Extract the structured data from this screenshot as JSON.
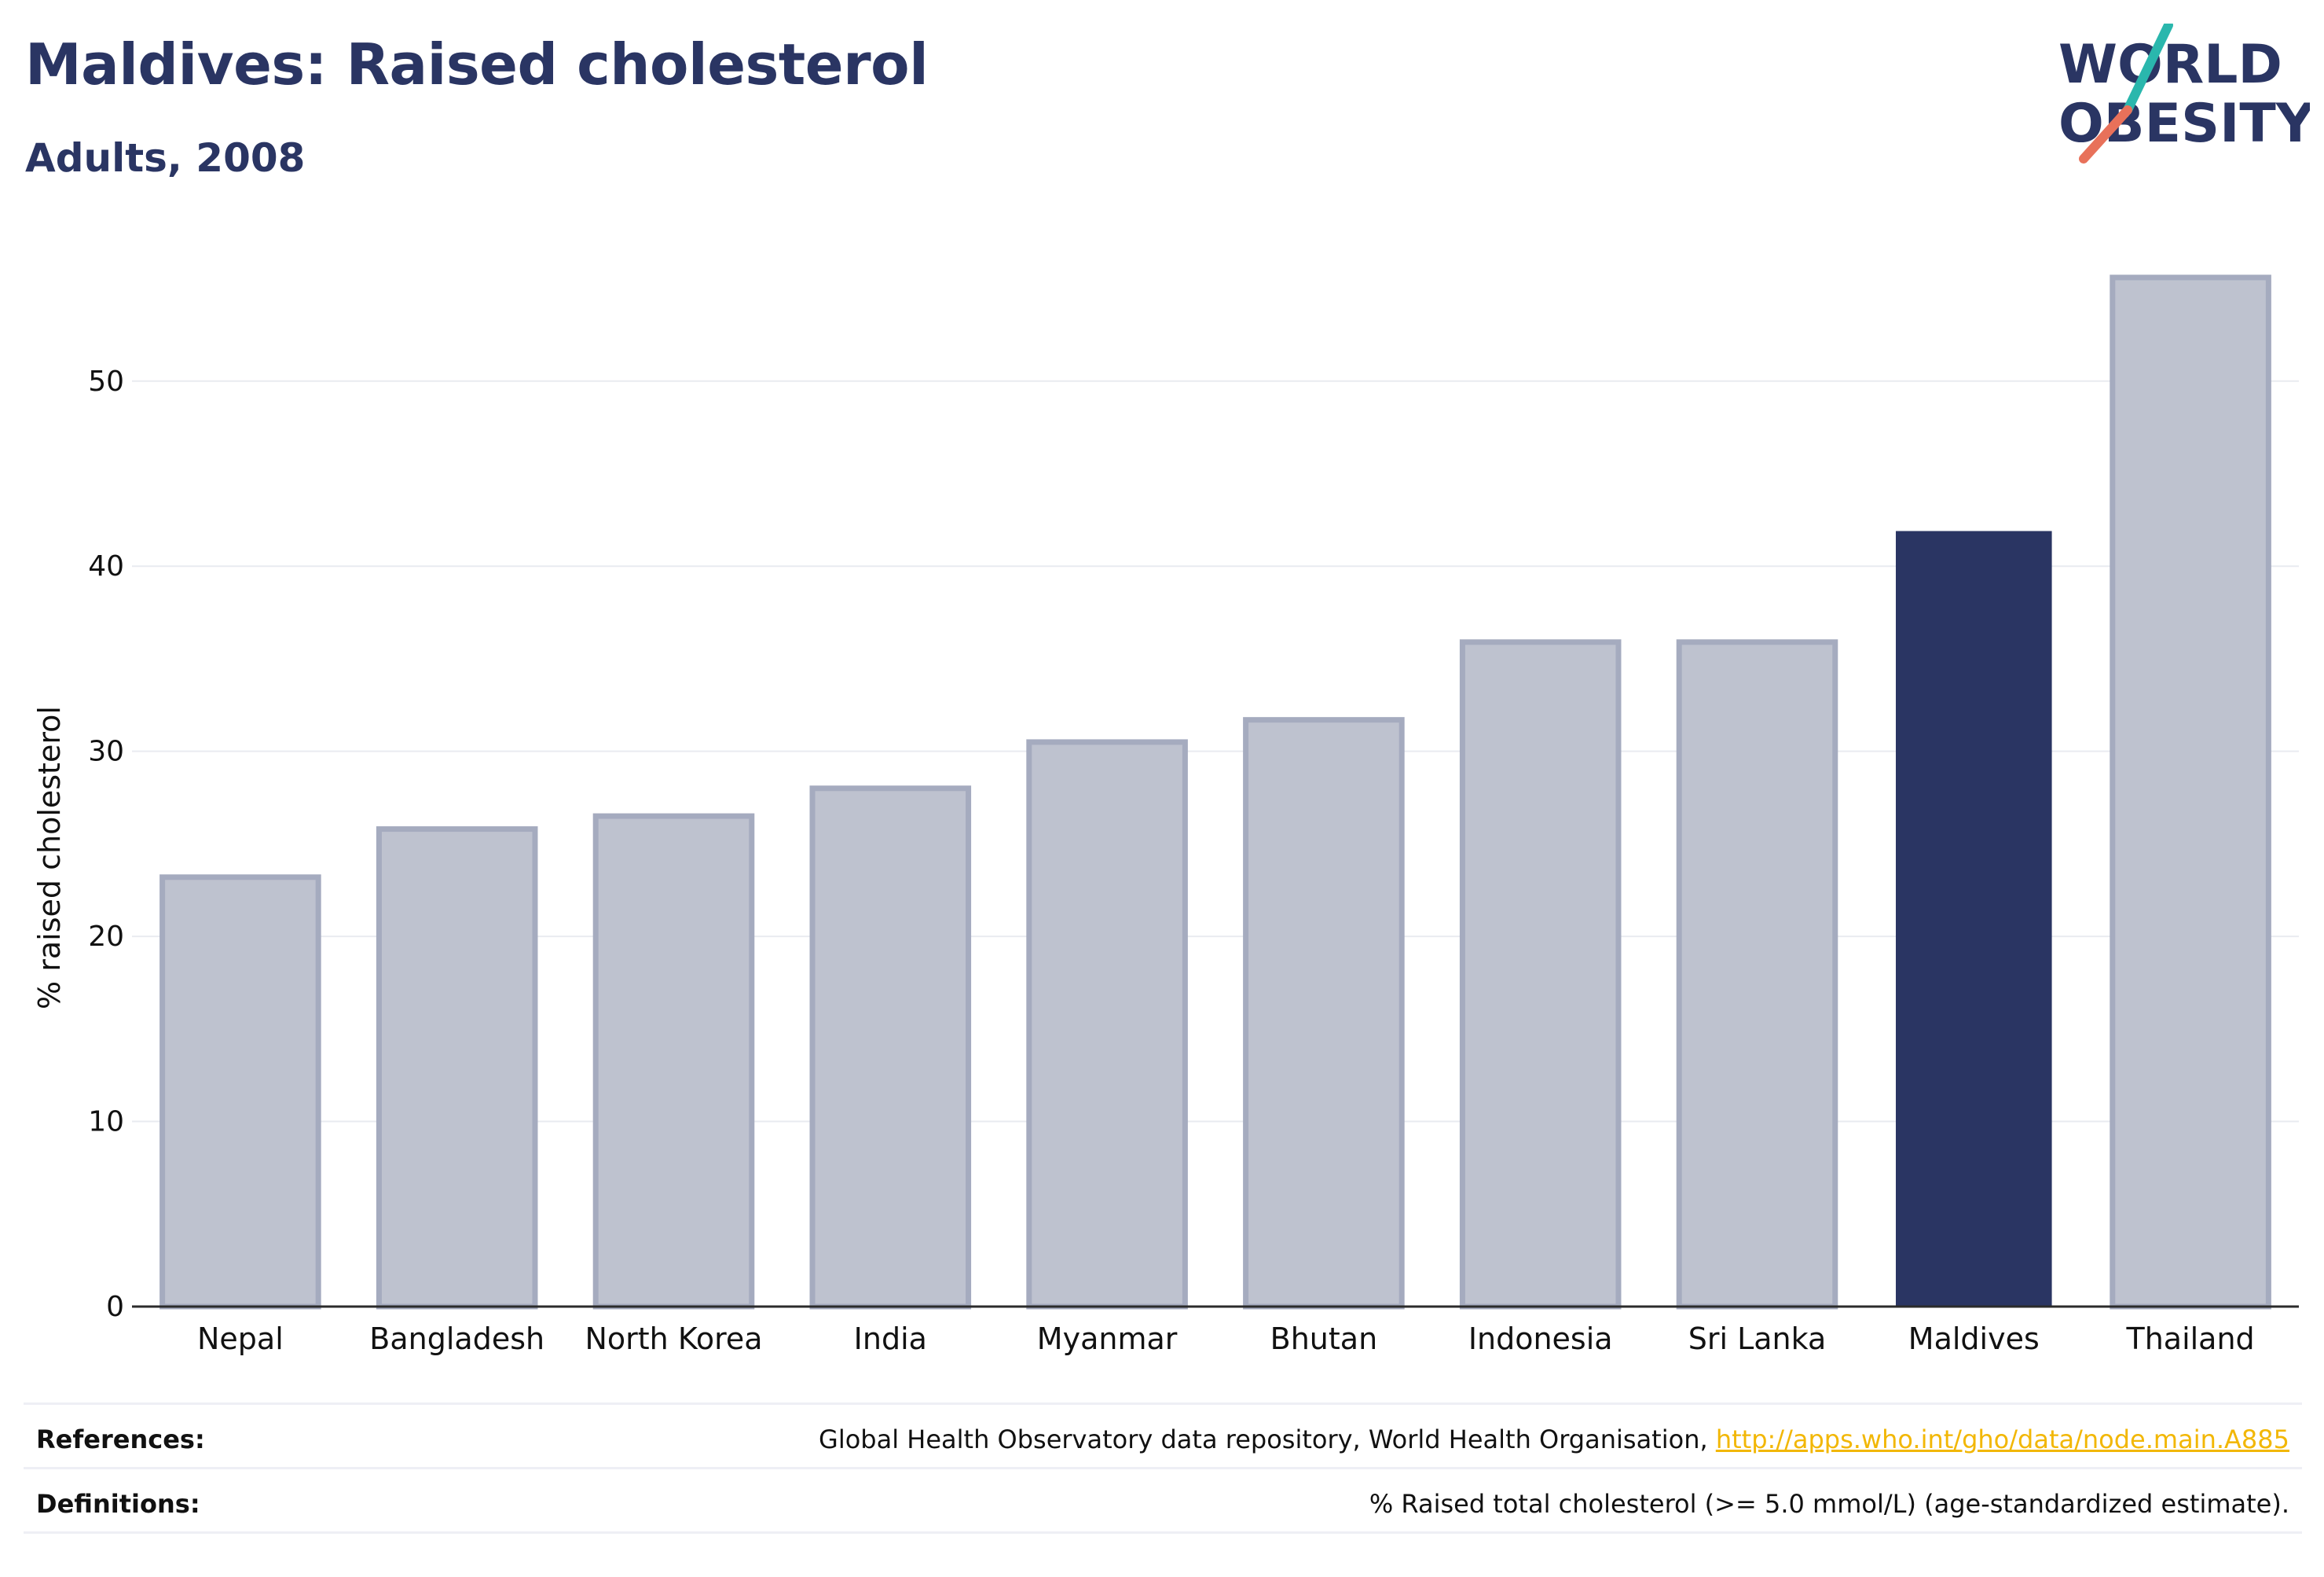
{
  "header": {
    "title": "Maldives: Raised cholesterol",
    "subtitle": "Adults, 2008"
  },
  "logo": {
    "line1": "WORLD",
    "line2": "OBESITY",
    "accent_colors": [
      "#2ab7ad",
      "#e8715a"
    ]
  },
  "chart_data": {
    "type": "bar",
    "title": "Maldives: Raised cholesterol",
    "subtitle": "Adults, 2008",
    "xlabel": "",
    "ylabel": "% raised cholesterol",
    "ylim": [
      0,
      57
    ],
    "yticks": [
      0,
      10,
      20,
      30,
      40,
      50
    ],
    "grid": true,
    "categories": [
      "Nepal",
      "Bangladesh",
      "North Korea",
      "India",
      "Myanmar",
      "Bhutan",
      "Indonesia",
      "Sri Lanka",
      "Maldives",
      "Thailand"
    ],
    "values": [
      23.2,
      25.8,
      26.5,
      28.0,
      30.5,
      31.7,
      35.9,
      35.9,
      41.9,
      55.6
    ],
    "highlight": "Maldives",
    "colors": {
      "highlight": "#2a3563",
      "default": "#bec2cf",
      "default_border": "#a5abbf",
      "grid": "#e9ebf0",
      "axis": "#2b2b2b"
    }
  },
  "footer": {
    "references_label": "References:",
    "references_text": "Global Health Observatory data repository, World Health Organisation, ",
    "references_link": "http://apps.who.int/gho/data/node.main.A885",
    "definitions_label": "Definitions:",
    "definitions_text": "% Raised total cholesterol (>= 5.0 mmol/L) (age-standardized estimate)."
  }
}
